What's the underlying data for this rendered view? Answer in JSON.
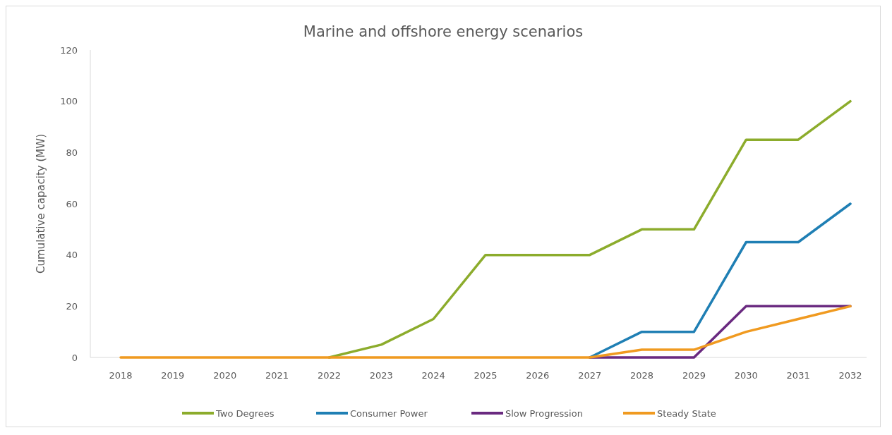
{
  "chart_data": {
    "type": "line",
    "title": "Marine and offshore energy scenarios",
    "ylabel": "Cumulative capacity (MW)",
    "categories": [
      "2018",
      "2019",
      "2020",
      "2021",
      "2022",
      "2023",
      "2024",
      "2025",
      "2026",
      "2027",
      "2028",
      "2029",
      "2030",
      "2031",
      "2032"
    ],
    "series": [
      {
        "name": "Two Degrees",
        "color": "#8cac2c",
        "values": [
          null,
          null,
          null,
          null,
          0,
          5,
          15,
          40,
          40,
          40,
          50,
          50,
          85,
          85,
          100
        ]
      },
      {
        "name": "Consumer Power",
        "color": "#1f7fb4",
        "values": [
          null,
          null,
          null,
          null,
          null,
          null,
          null,
          null,
          null,
          0,
          10,
          10,
          45,
          45,
          60
        ]
      },
      {
        "name": "Slow Progression",
        "color": "#6a2a80",
        "values": [
          null,
          null,
          null,
          null,
          null,
          null,
          null,
          null,
          null,
          0,
          0,
          0,
          20,
          20,
          20
        ]
      },
      {
        "name": "Steady State",
        "color": "#f09a20",
        "values": [
          0,
          0,
          0,
          0,
          0,
          0,
          0,
          0,
          0,
          0,
          3,
          3,
          10,
          15,
          20
        ]
      }
    ],
    "ylim": [
      0,
      120
    ],
    "yticks": [
      0,
      20,
      40,
      60,
      80,
      100,
      120
    ],
    "grid": false,
    "legend": "bottom",
    "marker": "none",
    "line_style": "solid"
  }
}
